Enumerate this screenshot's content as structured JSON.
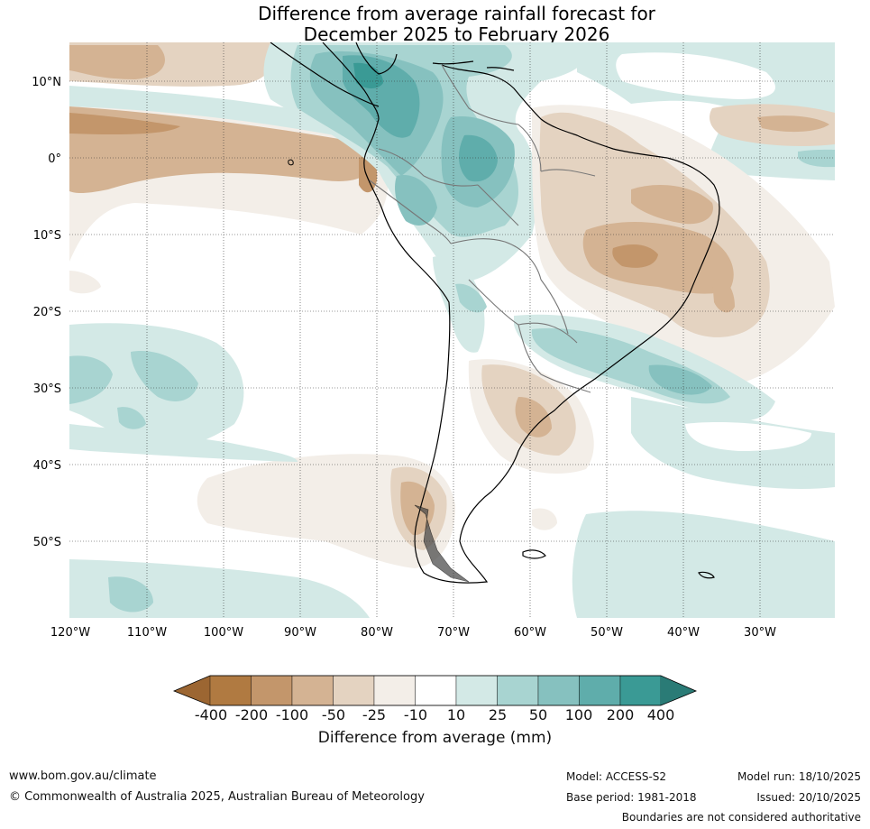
{
  "title_line1": "Difference from average rainfall forecast for",
  "title_line2": "December 2025 to February 2026",
  "lat_labels": [
    "10°N",
    "0°",
    "10°S",
    "20°S",
    "30°S",
    "40°S",
    "50°S"
  ],
  "lon_labels": [
    "120°W",
    "110°W",
    "100°W",
    "90°W",
    "80°W",
    "70°W",
    "60°W",
    "50°W",
    "40°W",
    "30°W"
  ],
  "colorbar": {
    "labels": [
      "-400",
      "-200",
      "-100",
      "-50",
      "-25",
      "-10",
      "10",
      "25",
      "50",
      "100",
      "200",
      "400"
    ],
    "colors": [
      "#9c6632",
      "#b07a41",
      "#c3966b",
      "#d4b393",
      "#e4d3c1",
      "#f3eee8",
      "#ffffff",
      "#d3e9e6",
      "#a8d4d1",
      "#86c1bf",
      "#5fadab",
      "#3a9a95",
      "#2a7b76"
    ],
    "title": "Difference from average (mm)"
  },
  "footer": {
    "website": "www.bom.gov.au/climate",
    "copyright": "© Commonwealth of Australia 2025, Australian Bureau of Meteorology",
    "model": "Model: ACCESS-S2",
    "base_period": "Base period: 1981-2018",
    "model_run": "Model run: 18/10/2025",
    "issued": "Issued: 20/10/2025",
    "disclaimer": "Boundaries are not considered authoritative"
  }
}
